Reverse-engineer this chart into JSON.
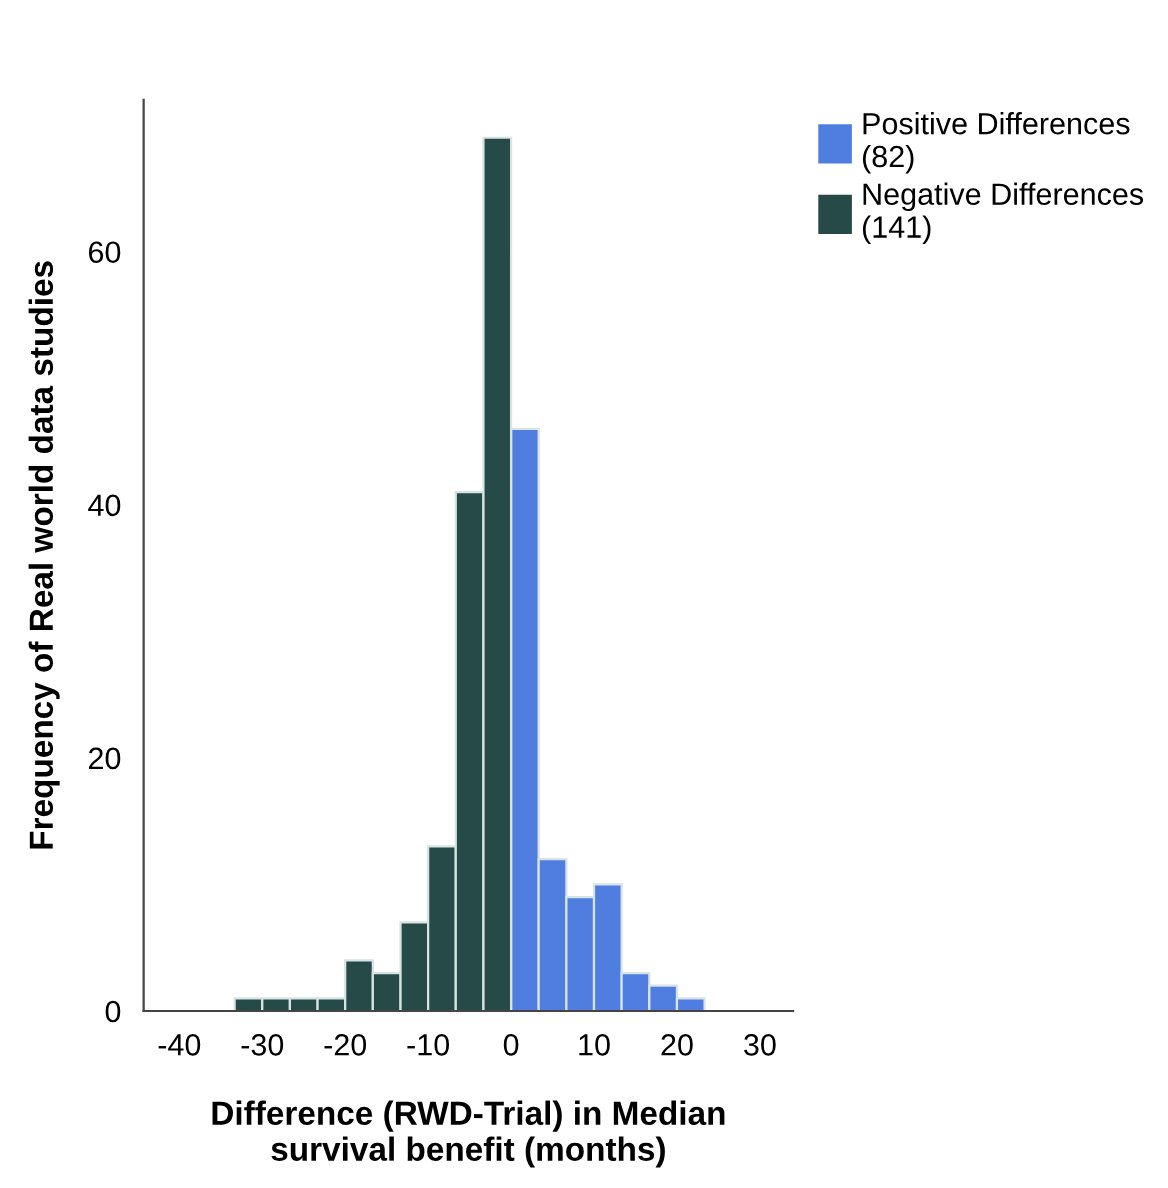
{
  "chart_data": {
    "type": "histogram",
    "xlabel": "Difference (RWD-Trial) in Median\nsurvival benefit (months)",
    "ylabel": "Frequency of Real world data studies",
    "bins": [
      -33.33,
      -30,
      -26.67,
      -23.33,
      -20,
      -16.67,
      -13.33,
      -10,
      -6.67,
      -3.33,
      0,
      3.33,
      6.67,
      10,
      13.33,
      16.67,
      20,
      23.33
    ],
    "series": [
      {
        "name": "Positive Differences\n(82)",
        "color": "#4f7ee0",
        "values": [
          null,
          null,
          null,
          null,
          null,
          null,
          null,
          null,
          null,
          null,
          46,
          12,
          9,
          10,
          3,
          2,
          1
        ]
      },
      {
        "name": "Negative Differences\n(141)",
        "color": "#264a48",
        "values": [
          1,
          1,
          1,
          1,
          4,
          3,
          7,
          13,
          41,
          69,
          null,
          null,
          null,
          null,
          null,
          null,
          null
        ]
      }
    ],
    "xlim": [
      -44.3,
      34
    ],
    "xticks": [
      -40,
      -30,
      -20,
      -10,
      0,
      10,
      20,
      30
    ],
    "ylim": [
      0,
      72
    ],
    "yticks": [
      0,
      20,
      40,
      60
    ],
    "grid": false,
    "legend": "top right"
  }
}
